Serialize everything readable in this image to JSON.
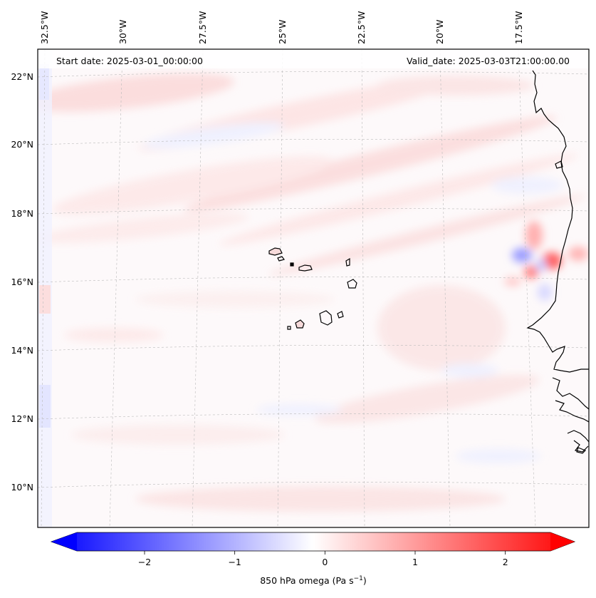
{
  "map": {
    "header_left": "Start date: 2025-03-01_00:00:00",
    "header_right": "Valid_date: 2025-03-03T21:00:00.00",
    "lon_labels": [
      "32.5°W",
      "30°W",
      "27.5°W",
      "25°W",
      "22.5°W",
      "20°W",
      "17.5°W"
    ],
    "lat_labels": [
      "22°N",
      "20°N",
      "18°N",
      "16°N",
      "14°N",
      "12°N",
      "10°N"
    ],
    "colorbar": {
      "ticks": [
        "−2",
        "−1",
        "0",
        "1",
        "2"
      ],
      "tick_values": [
        -2,
        -1,
        0,
        1,
        2
      ],
      "range": [
        -2.75,
        2.5
      ],
      "label_main": "850 hPa omega (Pa s",
      "label_exp": "−1",
      "label_end": ")",
      "color_neg": "#0000ff",
      "color_zero": "#ffffff",
      "color_pos": "#ff0000"
    }
  }
}
